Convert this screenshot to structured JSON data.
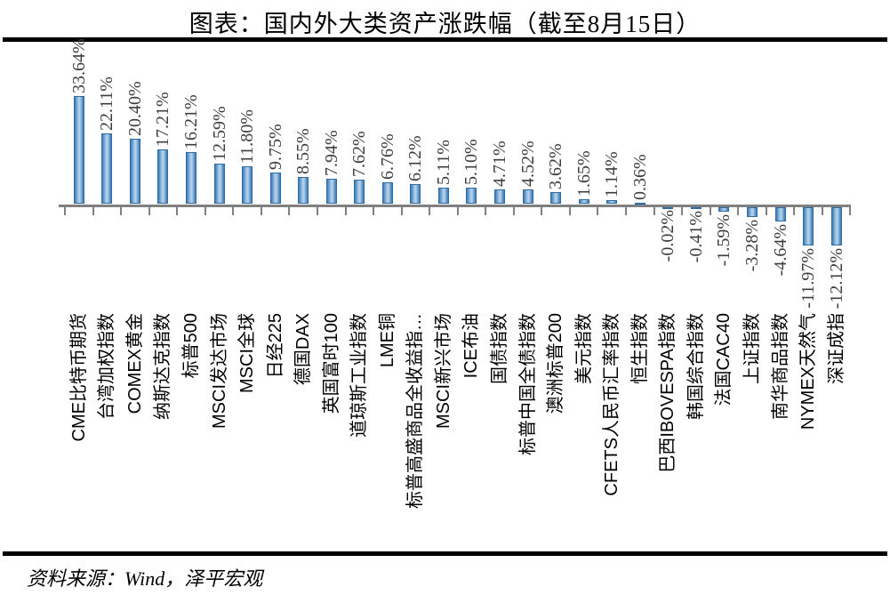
{
  "title": "图表：国内外大类资产涨跌幅（截至8月15日）",
  "source": "资料来源：Wind，泽平宏观",
  "chart_data": {
    "type": "bar",
    "title": "国内外大类资产涨跌幅（截至8月15日）",
    "unit": "%",
    "legend": "none",
    "grid": "off",
    "ylim": [
      -14,
      36
    ],
    "categories": [
      "CME比特币期货",
      "台湾加权指数",
      "COMEX黄金",
      "纳斯达克指数",
      "标普500",
      "MSCI发达市场",
      "MSCI全球",
      "日经225",
      "德国DAX",
      "英国富时100",
      "道琼斯工业指数",
      "LME铜",
      "标普高盛商品全收益指…",
      "MSCI新兴市场",
      "ICE布油",
      "国债指数",
      "标普中国全债指数",
      "澳洲标普200",
      "美元指数",
      "CFETS人民币汇率指数",
      "恒生指数",
      "巴西IBOVESPA指数",
      "韩国综合指数",
      "法国CAC40",
      "上证指数",
      "南华商品指数",
      "NYMEX天然气",
      "深证成指"
    ],
    "values": [
      33.64,
      22.11,
      20.4,
      17.21,
      16.21,
      12.59,
      11.8,
      9.75,
      8.55,
      7.94,
      7.62,
      6.76,
      6.12,
      5.11,
      5.1,
      4.71,
      4.52,
      3.62,
      1.65,
      1.14,
      0.36,
      -0.02,
      -0.41,
      -1.59,
      -3.28,
      -4.64,
      -11.97,
      -12.12
    ],
    "value_labels": [
      "33.64%",
      "22.11%",
      "20.40%",
      "17.21%",
      "16.21%",
      "12.59%",
      "11.80%",
      "9.75%",
      "8.55%",
      "7.94%",
      "7.62%",
      "6.76%",
      "6.12%",
      "5.11%",
      "5.10%",
      "4.71%",
      "4.52%",
      "3.62%",
      "1.65%",
      "1.14%",
      "0.36%",
      "-0.02%",
      "-0.41%",
      "-1.59%",
      "-3.28%",
      "-4.64%",
      "-11.97%",
      "-12.12%"
    ],
    "colors": {
      "bar_edge": "#3b77ae",
      "bar_center": "#b9d4ec",
      "bar_border": "#2e6aa3",
      "axis": "#808080",
      "value_label": "#3d3d3d",
      "category_label": "#000000"
    }
  }
}
